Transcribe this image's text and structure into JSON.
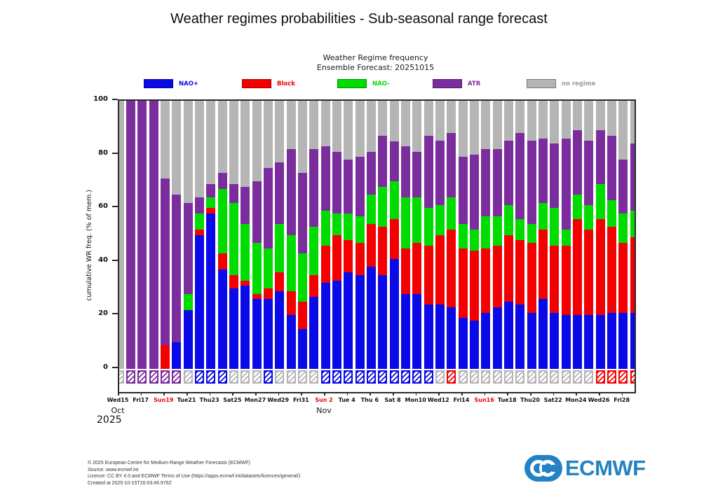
{
  "page_title": "Weather regimes probabilities - Sub-seasonal range forecast",
  "chart": {
    "title": "Weather Regime frequency",
    "subtitle": "Ensemble Forecast: 20251015"
  },
  "colors": {
    "blue": "#0a0ae8",
    "red": "#f50000",
    "green": "#00dc00",
    "purple": "#7b2d9e",
    "gray": "#b5b5b5",
    "sunday_label": "#ee0000",
    "logo_blue": "#2382c4"
  },
  "legend": [
    {
      "label": "NAO+",
      "color": "blue"
    },
    {
      "label": "Block",
      "color": "red"
    },
    {
      "label": "NAO-",
      "color": "green"
    },
    {
      "label": "ATR",
      "color": "purple"
    },
    {
      "label": "no regime",
      "color": "gray"
    }
  ],
  "chart_data": {
    "type": "bar",
    "stacked": true,
    "title": "Weather Regime frequency",
    "subtitle": "Ensemble Forecast: 20251015",
    "xlabel": "",
    "ylabel": "cumulative WR freq. (% of mem.)",
    "ylim": [
      0,
      100
    ],
    "yticks": [
      0,
      20,
      40,
      60,
      80,
      100
    ],
    "series_names": [
      "NAO+",
      "Block",
      "NAO-",
      "ATR",
      "no regime"
    ],
    "series_colors": [
      "blue",
      "red",
      "green",
      "purple",
      "gray"
    ],
    "year": "2025",
    "months": [
      {
        "label": "Oct",
        "day_index": 0
      },
      {
        "label": "Nov",
        "day_index": 18
      }
    ],
    "days": [
      {
        "date": "Wed15",
        "tick": true,
        "sunday": false,
        "values": [
          0,
          0,
          0,
          0,
          100
        ],
        "marker": "gray"
      },
      {
        "date": "Thu16",
        "tick": false,
        "sunday": false,
        "values": [
          0,
          0,
          0,
          100,
          0
        ],
        "marker": "purple"
      },
      {
        "date": "Fri17",
        "tick": true,
        "sunday": false,
        "values": [
          0,
          0,
          0,
          100,
          0
        ],
        "marker": "purple"
      },
      {
        "date": "Sat18",
        "tick": false,
        "sunday": false,
        "values": [
          0,
          0,
          0,
          100,
          0
        ],
        "marker": "purple"
      },
      {
        "date": "Sun19",
        "tick": true,
        "sunday": true,
        "values": [
          0,
          9,
          0,
          62,
          29
        ],
        "marker": "purple"
      },
      {
        "date": "Mon20",
        "tick": false,
        "sunday": false,
        "values": [
          10,
          0,
          0,
          55,
          35
        ],
        "marker": "purple"
      },
      {
        "date": "Tue21",
        "tick": true,
        "sunday": false,
        "values": [
          22,
          0,
          6,
          34,
          38
        ],
        "marker": "gray"
      },
      {
        "date": "Wed22",
        "tick": false,
        "sunday": false,
        "values": [
          50,
          2,
          6,
          6,
          36
        ],
        "marker": "blue"
      },
      {
        "date": "Thu23",
        "tick": true,
        "sunday": false,
        "values": [
          58,
          2,
          4,
          5,
          31
        ],
        "marker": "blue"
      },
      {
        "date": "Fri24",
        "tick": false,
        "sunday": false,
        "values": [
          37,
          6,
          24,
          6,
          27
        ],
        "marker": "blue"
      },
      {
        "date": "Sat25",
        "tick": true,
        "sunday": false,
        "values": [
          30,
          5,
          27,
          7,
          31
        ],
        "marker": "gray"
      },
      {
        "date": "Sun26",
        "tick": false,
        "sunday": true,
        "values": [
          31,
          2,
          21,
          14,
          32
        ],
        "marker": "gray"
      },
      {
        "date": "Mon27",
        "tick": true,
        "sunday": false,
        "values": [
          26,
          2,
          19,
          23,
          30
        ],
        "marker": "gray"
      },
      {
        "date": "Tue28",
        "tick": false,
        "sunday": false,
        "values": [
          26,
          4,
          15,
          30,
          25
        ],
        "marker": "blue"
      },
      {
        "date": "Wed29",
        "tick": true,
        "sunday": false,
        "values": [
          29,
          7,
          18,
          23,
          23
        ],
        "marker": "gray"
      },
      {
        "date": "Thu30",
        "tick": false,
        "sunday": false,
        "values": [
          20,
          9,
          21,
          32,
          18
        ],
        "marker": "gray"
      },
      {
        "date": "Fri31",
        "tick": true,
        "sunday": false,
        "values": [
          15,
          10,
          18,
          30,
          27
        ],
        "marker": "gray"
      },
      {
        "date": "Sat 1",
        "tick": false,
        "sunday": false,
        "values": [
          27,
          8,
          18,
          29,
          18
        ],
        "marker": "gray"
      },
      {
        "date": "Sun 2",
        "tick": true,
        "sunday": true,
        "values": [
          32,
          14,
          13,
          24,
          17
        ],
        "marker": "blue"
      },
      {
        "date": "Mon 3",
        "tick": false,
        "sunday": false,
        "values": [
          33,
          17,
          8,
          23,
          19
        ],
        "marker": "blue"
      },
      {
        "date": "Tue 4",
        "tick": true,
        "sunday": false,
        "values": [
          36,
          12,
          10,
          20,
          22
        ],
        "marker": "blue"
      },
      {
        "date": "Wed 5",
        "tick": false,
        "sunday": false,
        "values": [
          35,
          12,
          10,
          22,
          21
        ],
        "marker": "blue"
      },
      {
        "date": "Thu 6",
        "tick": true,
        "sunday": false,
        "values": [
          38,
          16,
          11,
          16,
          19
        ],
        "marker": "blue"
      },
      {
        "date": "Fri 7",
        "tick": false,
        "sunday": false,
        "values": [
          35,
          18,
          15,
          19,
          13
        ],
        "marker": "blue"
      },
      {
        "date": "Sat 8",
        "tick": true,
        "sunday": false,
        "values": [
          41,
          15,
          14,
          15,
          15
        ],
        "marker": "blue"
      },
      {
        "date": "Sun 9",
        "tick": false,
        "sunday": true,
        "values": [
          28,
          17,
          19,
          19,
          17
        ],
        "marker": "blue"
      },
      {
        "date": "Mon10",
        "tick": true,
        "sunday": false,
        "values": [
          28,
          19,
          17,
          17,
          19
        ],
        "marker": "blue"
      },
      {
        "date": "Tue11",
        "tick": false,
        "sunday": false,
        "values": [
          24,
          22,
          14,
          27,
          13
        ],
        "marker": "blue"
      },
      {
        "date": "Wed12",
        "tick": true,
        "sunday": false,
        "values": [
          24,
          26,
          11,
          24,
          15
        ],
        "marker": "gray"
      },
      {
        "date": "Thu13",
        "tick": false,
        "sunday": false,
        "values": [
          23,
          29,
          12,
          24,
          12
        ],
        "marker": "red"
      },
      {
        "date": "Fri14",
        "tick": true,
        "sunday": false,
        "values": [
          19,
          26,
          9,
          25,
          21
        ],
        "marker": "gray"
      },
      {
        "date": "Sat15",
        "tick": false,
        "sunday": false,
        "values": [
          18,
          26,
          8,
          28,
          20
        ],
        "marker": "gray"
      },
      {
        "date": "Sun16",
        "tick": true,
        "sunday": true,
        "values": [
          21,
          24,
          12,
          25,
          18
        ],
        "marker": "gray"
      },
      {
        "date": "Mon17",
        "tick": false,
        "sunday": false,
        "values": [
          23,
          23,
          11,
          25,
          18
        ],
        "marker": "gray"
      },
      {
        "date": "Tue18",
        "tick": true,
        "sunday": false,
        "values": [
          25,
          25,
          11,
          24,
          15
        ],
        "marker": "gray"
      },
      {
        "date": "Wed19",
        "tick": false,
        "sunday": false,
        "values": [
          24,
          24,
          8,
          32,
          12
        ],
        "marker": "gray"
      },
      {
        "date": "Thu20",
        "tick": true,
        "sunday": false,
        "values": [
          21,
          26,
          7,
          31,
          15
        ],
        "marker": "gray"
      },
      {
        "date": "Fri21",
        "tick": false,
        "sunday": false,
        "values": [
          26,
          26,
          10,
          24,
          14
        ],
        "marker": "gray"
      },
      {
        "date": "Sat22",
        "tick": true,
        "sunday": false,
        "values": [
          21,
          25,
          14,
          24,
          16
        ],
        "marker": "gray"
      },
      {
        "date": "Sun23",
        "tick": false,
        "sunday": true,
        "values": [
          20,
          26,
          6,
          34,
          14
        ],
        "marker": "gray"
      },
      {
        "date": "Mon24",
        "tick": true,
        "sunday": false,
        "values": [
          20,
          36,
          9,
          24,
          11
        ],
        "marker": "gray"
      },
      {
        "date": "Tue25",
        "tick": false,
        "sunday": false,
        "values": [
          20,
          32,
          9,
          24,
          15
        ],
        "marker": "gray"
      },
      {
        "date": "Wed26",
        "tick": true,
        "sunday": false,
        "values": [
          20,
          36,
          13,
          20,
          11
        ],
        "marker": "red"
      },
      {
        "date": "Thu27",
        "tick": false,
        "sunday": false,
        "values": [
          21,
          32,
          10,
          24,
          13
        ],
        "marker": "red"
      },
      {
        "date": "Fri28",
        "tick": true,
        "sunday": false,
        "values": [
          21,
          26,
          11,
          20,
          22
        ],
        "marker": "red"
      },
      {
        "date": "Sat29",
        "tick": false,
        "sunday": false,
        "values": [
          21,
          28,
          10,
          25,
          16
        ],
        "marker": "red"
      }
    ]
  },
  "footer": [
    "© 2025 European Centre for Medium-Range Weather Forecasts (ECMWF)",
    "Source: www.ecmwf.int",
    "Licence: CC BY 4.0 and ECMWF Terms of Use (https://apps.ecmwf.int/datasets/licences/general/)",
    "Created at 2025-10-15T20:03:46.976Z"
  ],
  "logo": {
    "text": "ECMWF"
  }
}
